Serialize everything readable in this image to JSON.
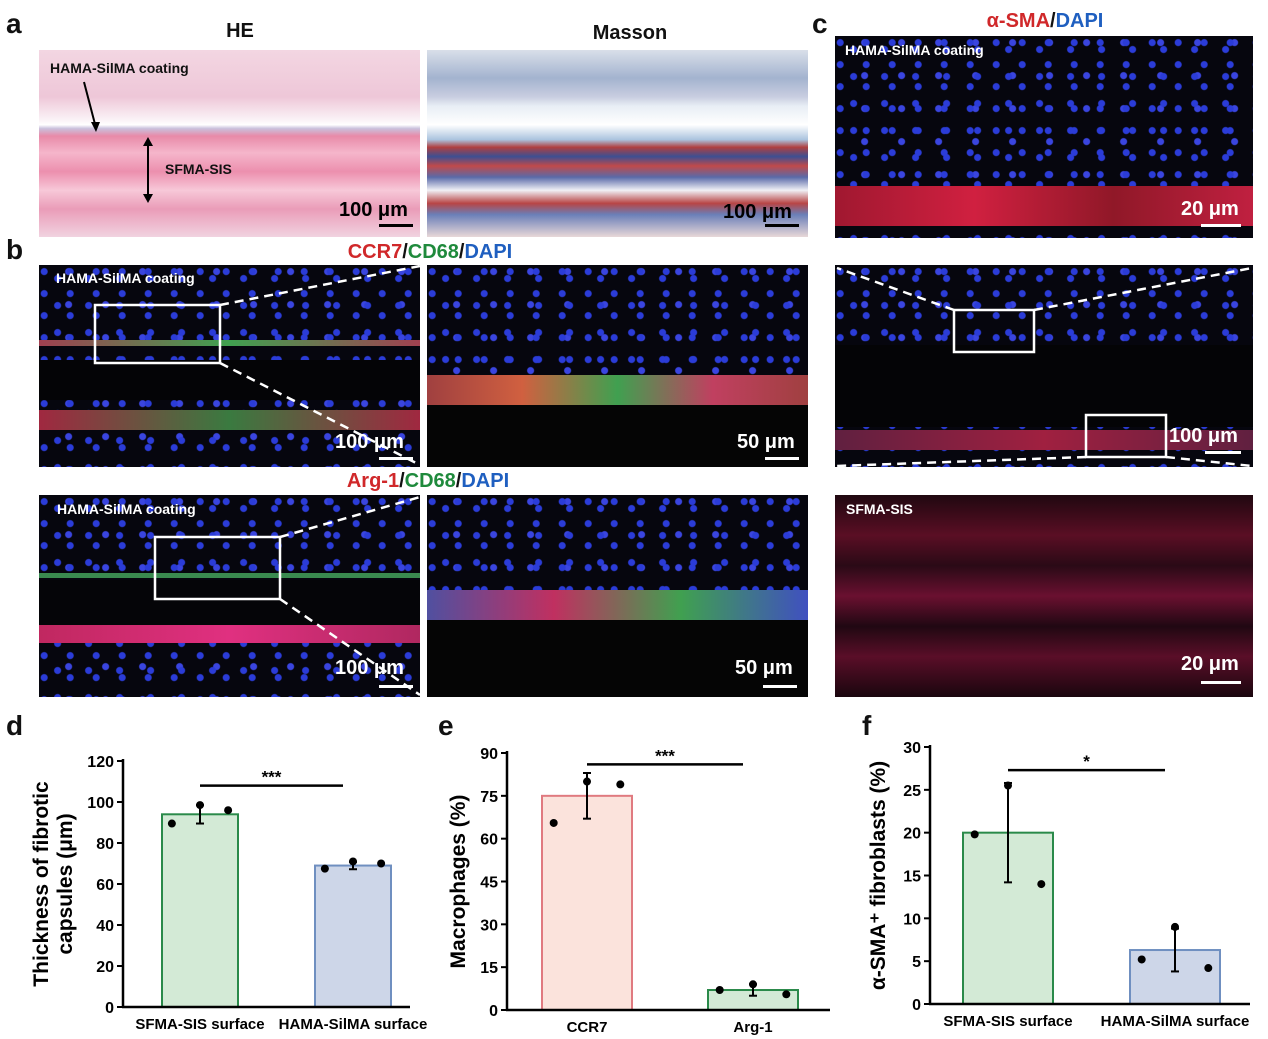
{
  "panel_labels": {
    "a": "a",
    "b": "b",
    "c": "c",
    "d": "d",
    "e": "e",
    "f": "f"
  },
  "panel_a": {
    "he_title": "HE",
    "masson_title": "Masson",
    "coating_label": "HAMA-SilMA coating",
    "sfma_label": "SFMA-SIS",
    "scale_he": "100 μm",
    "scale_masson": "100 μm"
  },
  "panel_b": {
    "title_row1": {
      "p1": "CCR7",
      "s1": "/",
      "p2": "CD68",
      "s2": "/",
      "p3": "DAPI"
    },
    "title_row2": {
      "p1": "Arg-1",
      "s1": "/",
      "p2": "CD68",
      "s2": "/",
      "p3": "DAPI"
    },
    "coating_label": "HAMA-SilMA coating",
    "scale_low": "100 μm",
    "scale_high": "50 μm"
  },
  "panel_c": {
    "title": {
      "p1": "α-SMA",
      "s1": "/",
      "p2": "DAPI"
    },
    "top_label": "HAMA-SilMA coating",
    "bottom_label": "SFMA-SIS",
    "scale_top": "20 μm",
    "scale_mid": "100 μm",
    "scale_bottom": "20 μm"
  },
  "colors": {
    "red": "#d0282a",
    "green": "#1f8a3c",
    "blue": "#1f5fc0"
  },
  "chart_data": [
    {
      "id": "d",
      "type": "bar",
      "ylabel_lines": [
        "Thickness of fibrotic",
        "capsules (μm)"
      ],
      "categories": [
        "SFMA-SIS surface",
        "HAMA-SilMA surface"
      ],
      "values": [
        94,
        69
      ],
      "errors": [
        4.5,
        1.8
      ],
      "points": [
        [
          89.5,
          98.5,
          96
        ],
        [
          67.5,
          71,
          70
        ]
      ],
      "ylim": [
        0,
        120
      ],
      "yticks": [
        0,
        20,
        40,
        60,
        80,
        100,
        120
      ],
      "fills": [
        "#d3ead6",
        "#cdd6e8"
      ],
      "strokes": [
        "#2a8a4a",
        "#6f8fc0"
      ],
      "significance": {
        "from": 0,
        "to": 1,
        "y": 108,
        "label": "***"
      }
    },
    {
      "id": "e",
      "type": "bar",
      "ylabel_lines": [
        "Macrophages (%)"
      ],
      "categories": [
        "CCR7",
        "Arg-1"
      ],
      "values": [
        75,
        7
      ],
      "errors": [
        8,
        2
      ],
      "points": [
        [
          65.5,
          80,
          79
        ],
        [
          7,
          9,
          5.5
        ]
      ],
      "ylim": [
        0,
        90
      ],
      "yticks": [
        0,
        15,
        30,
        45,
        60,
        75,
        90
      ],
      "fills": [
        "#fbe3dc",
        "#d3ead6"
      ],
      "strokes": [
        "#e07a80",
        "#2a8a4a"
      ],
      "significance": {
        "from": 0,
        "to": 1,
        "y": 86,
        "label": "***"
      }
    },
    {
      "id": "f",
      "type": "bar",
      "ylabel_lines": [
        "α-SMA⁺ fibroblasts (%)"
      ],
      "categories": [
        "SFMA-SIS surface",
        "HAMA-SilMA surface"
      ],
      "values": [
        20,
        6.3
      ],
      "errors": [
        5.8,
        2.5
      ],
      "points": [
        [
          19.8,
          25.5,
          14
        ],
        [
          5.2,
          9,
          4.2
        ]
      ],
      "ylim": [
        0,
        30
      ],
      "yticks": [
        0,
        5,
        10,
        15,
        20,
        25,
        30
      ],
      "fills": [
        "#d3ead6",
        "#cdd6e8"
      ],
      "strokes": [
        "#2a8a4a",
        "#6f8fc0"
      ],
      "significance": {
        "from": 0,
        "to": 1,
        "y": 27.3,
        "label": "*"
      }
    }
  ]
}
